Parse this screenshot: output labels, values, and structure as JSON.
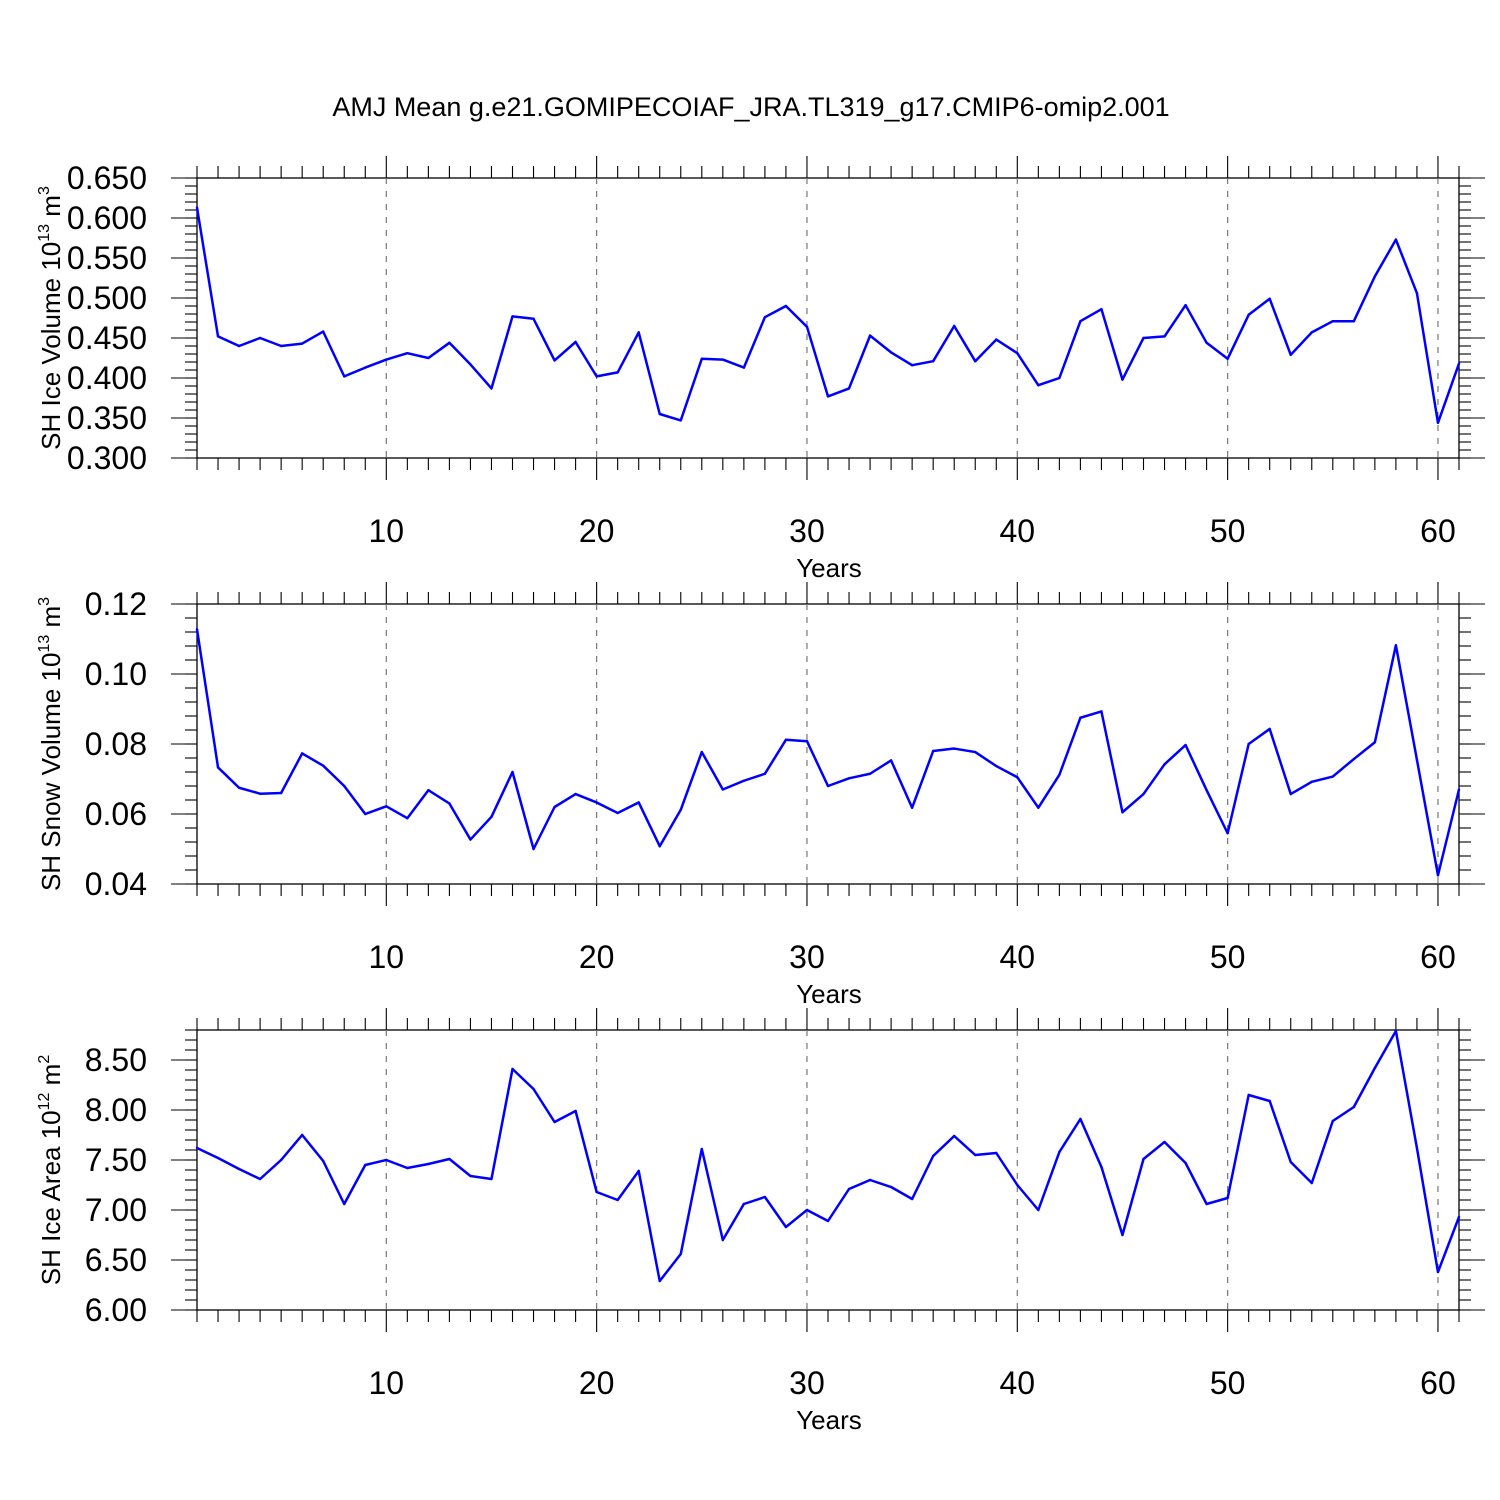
{
  "title": "AMJ Mean g.e21.GOMIPECOIAF_JRA.TL319_g17.CMIP6-omip2.001",
  "colors": {
    "series": "#0000ff",
    "axes": "#000000",
    "grid": "#777777"
  },
  "chart_data": [
    {
      "type": "line",
      "name": "ice-volume",
      "ylabel": "SH Ice Volume 10",
      "ylabel_exp": "13",
      "ylabel_unit": " m",
      "ylabel_unit_exp": "3",
      "xlabel": "Years",
      "xlim": [
        1,
        61
      ],
      "ylim": [
        0.3,
        0.65
      ],
      "xticks": [
        10,
        20,
        30,
        40,
        50,
        60
      ],
      "xtick_labels": [
        "10",
        "20",
        "30",
        "40",
        "50",
        "60"
      ],
      "yticks": [
        0.3,
        0.35,
        0.4,
        0.45,
        0.5,
        0.55,
        0.6,
        0.65
      ],
      "ytick_labels": [
        "0.300",
        "0.350",
        "0.400",
        "0.450",
        "0.500",
        "0.550",
        "0.600",
        "0.650"
      ],
      "ytick_minor_step": 0.01,
      "x": [
        1,
        2,
        3,
        4,
        5,
        6,
        7,
        8,
        9,
        10,
        11,
        12,
        13,
        14,
        15,
        16,
        17,
        18,
        19,
        20,
        21,
        22,
        23,
        24,
        25,
        26,
        27,
        28,
        29,
        30,
        31,
        32,
        33,
        34,
        35,
        36,
        37,
        38,
        39,
        40,
        41,
        42,
        43,
        44,
        45,
        46,
        47,
        48,
        49,
        50,
        51,
        52,
        53,
        54,
        55,
        56,
        57,
        58,
        59,
        60,
        61
      ],
      "values": [
        0.613,
        0.452,
        0.44,
        0.45,
        0.44,
        0.443,
        0.458,
        0.402,
        0.413,
        0.423,
        0.431,
        0.425,
        0.444,
        0.417,
        0.387,
        0.477,
        0.474,
        0.422,
        0.445,
        0.402,
        0.407,
        0.457,
        0.355,
        0.347,
        0.424,
        0.423,
        0.413,
        0.476,
        0.49,
        0.464,
        0.377,
        0.387,
        0.453,
        0.432,
        0.416,
        0.421,
        0.465,
        0.421,
        0.448,
        0.431,
        0.391,
        0.4,
        0.471,
        0.486,
        0.398,
        0.45,
        0.452,
        0.491,
        0.444,
        0.424,
        0.479,
        0.499,
        0.429,
        0.457,
        0.471,
        0.471,
        0.527,
        0.573,
        0.506,
        0.344,
        0.418
      ]
    },
    {
      "type": "line",
      "name": "snow-volume",
      "ylabel": "SH Snow Volume 10",
      "ylabel_exp": "13",
      "ylabel_unit": " m",
      "ylabel_unit_exp": "3",
      "xlabel": "Years",
      "xlim": [
        1,
        61
      ],
      "ylim": [
        0.04,
        0.12
      ],
      "xticks": [
        10,
        20,
        30,
        40,
        50,
        60
      ],
      "xtick_labels": [
        "10",
        "20",
        "30",
        "40",
        "50",
        "60"
      ],
      "yticks": [
        0.04,
        0.06,
        0.08,
        0.1,
        0.12
      ],
      "ytick_labels": [
        "0.04",
        "0.06",
        "0.08",
        "0.10",
        "0.12"
      ],
      "ytick_minor_step": 0.004,
      "x": [
        1,
        2,
        3,
        4,
        5,
        6,
        7,
        8,
        9,
        10,
        11,
        12,
        13,
        14,
        15,
        16,
        17,
        18,
        19,
        20,
        21,
        22,
        23,
        24,
        25,
        26,
        27,
        28,
        29,
        30,
        31,
        32,
        33,
        34,
        35,
        36,
        37,
        38,
        39,
        40,
        41,
        42,
        43,
        44,
        45,
        46,
        47,
        48,
        49,
        50,
        51,
        52,
        53,
        54,
        55,
        56,
        57,
        58,
        59,
        60,
        61
      ],
      "values": [
        0.1128,
        0.0733,
        0.0675,
        0.0658,
        0.066,
        0.0773,
        0.0738,
        0.068,
        0.06,
        0.0622,
        0.0588,
        0.0668,
        0.063,
        0.0527,
        0.0592,
        0.072,
        0.05,
        0.062,
        0.0657,
        0.0633,
        0.0603,
        0.0633,
        0.0508,
        0.0612,
        0.0777,
        0.067,
        0.0695,
        0.0715,
        0.0812,
        0.0808,
        0.068,
        0.0702,
        0.0715,
        0.0753,
        0.0618,
        0.078,
        0.0787,
        0.0777,
        0.0737,
        0.0705,
        0.0618,
        0.0712,
        0.0875,
        0.0893,
        0.0605,
        0.0657,
        0.0742,
        0.0797,
        0.0668,
        0.0545,
        0.08,
        0.0843,
        0.0657,
        0.0692,
        0.0707,
        0.0757,
        0.0805,
        0.1082,
        0.0755,
        0.0425,
        0.067
      ]
    },
    {
      "type": "line",
      "name": "ice-area",
      "ylabel": "SH Ice Area 10",
      "ylabel_exp": "12",
      "ylabel_unit": " m",
      "ylabel_unit_exp": "2",
      "xlabel": "Years",
      "xlim": [
        1,
        61
      ],
      "ylim": [
        6.0,
        8.8
      ],
      "xticks": [
        10,
        20,
        30,
        40,
        50,
        60
      ],
      "xtick_labels": [
        "10",
        "20",
        "30",
        "40",
        "50",
        "60"
      ],
      "yticks": [
        6.0,
        6.5,
        7.0,
        7.5,
        8.0,
        8.5
      ],
      "ytick_labels": [
        "6.00",
        "6.50",
        "7.00",
        "7.50",
        "8.00",
        "8.50"
      ],
      "ytick_minor_step": 0.1,
      "x": [
        1,
        2,
        3,
        4,
        5,
        6,
        7,
        8,
        9,
        10,
        11,
        12,
        13,
        14,
        15,
        16,
        17,
        18,
        19,
        20,
        21,
        22,
        23,
        24,
        25,
        26,
        27,
        28,
        29,
        30,
        31,
        32,
        33,
        34,
        35,
        36,
        37,
        38,
        39,
        40,
        41,
        42,
        43,
        44,
        45,
        46,
        47,
        48,
        49,
        50,
        51,
        52,
        53,
        54,
        55,
        56,
        57,
        58,
        59,
        60,
        61
      ],
      "values": [
        7.62,
        7.52,
        7.41,
        7.31,
        7.5,
        7.75,
        7.49,
        7.06,
        7.45,
        7.5,
        7.42,
        7.46,
        7.51,
        7.34,
        7.31,
        8.41,
        8.21,
        7.88,
        7.99,
        7.18,
        7.1,
        7.39,
        6.29,
        6.56,
        7.61,
        6.7,
        7.06,
        7.13,
        6.83,
        7.0,
        6.89,
        7.21,
        7.3,
        7.23,
        7.11,
        7.54,
        7.74,
        7.55,
        7.57,
        7.25,
        7.0,
        7.58,
        7.91,
        7.43,
        6.75,
        7.51,
        7.68,
        7.47,
        7.06,
        7.12,
        8.15,
        8.09,
        7.48,
        7.27,
        7.89,
        8.03,
        8.42,
        8.79,
        7.62,
        6.38,
        6.93
      ]
    }
  ]
}
